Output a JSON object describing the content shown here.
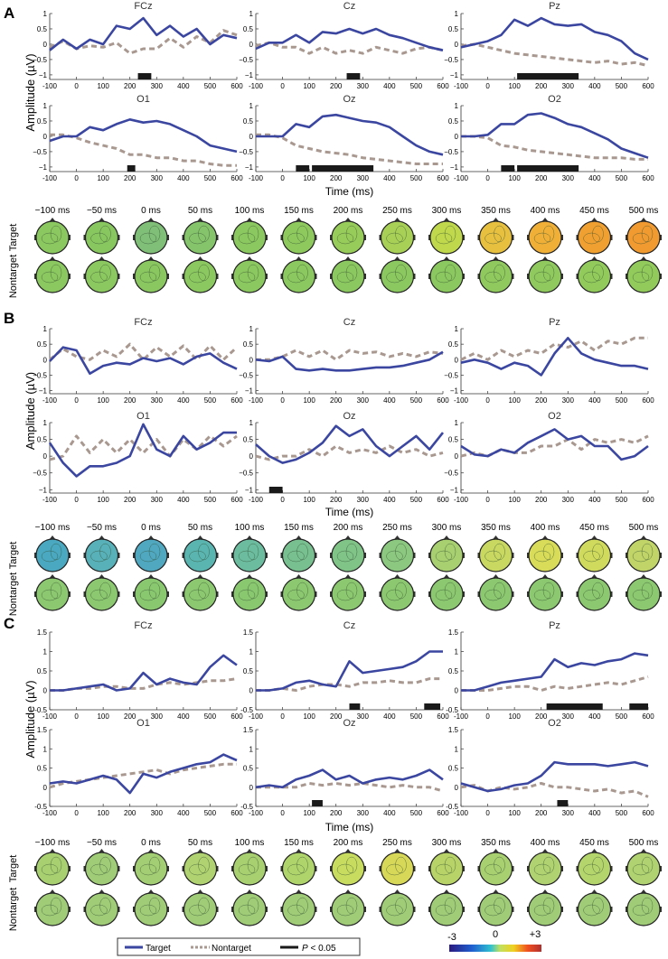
{
  "chart_data": {
    "type": "line",
    "xlabel": "Time (ms)",
    "ylabel": "Amplitude (µV)",
    "x": [
      -100,
      -50,
      0,
      50,
      100,
      150,
      200,
      250,
      300,
      350,
      400,
      450,
      500,
      550,
      600
    ],
    "xticks": [
      -100,
      0,
      100,
      200,
      300,
      400,
      500,
      600
    ],
    "legend": {
      "target": "Target",
      "nontarget": "Nontarget",
      "sig_p": "P",
      "sig_rest": " < 0.05"
    },
    "colors": {
      "target": "#3a46a0",
      "nontarget": "#a89890",
      "sig": "#1a1a1a"
    },
    "colorbar": {
      "min": "-3",
      "mid": "0",
      "max": "+3"
    },
    "topo_times": [
      "−100 ms",
      "−50 ms",
      "0 ms",
      "50 ms",
      "100 ms",
      "150 ms",
      "200 ms",
      "250 ms",
      "300 ms",
      "350 ms",
      "400 ms",
      "450 ms",
      "500 ms"
    ],
    "topo_row_labels": [
      "Target",
      "Nontarget"
    ],
    "panels": [
      {
        "label": "A",
        "ylim": [
          -1.15,
          1
        ],
        "yticks": [
          -1,
          -0.5,
          0,
          0.5,
          1
        ],
        "ytick_labels": [
          "−1",
          "−0.5",
          "0",
          "0.5",
          "1"
        ],
        "channels": [
          {
            "name": "FCz",
            "target": [
              -0.2,
              0.15,
              -0.15,
              0.15,
              0.0,
              0.6,
              0.5,
              0.85,
              0.3,
              0.6,
              0.25,
              0.5,
              0.0,
              0.3,
              0.2
            ],
            "nontarget": [
              -0.1,
              0.1,
              -0.15,
              -0.05,
              -0.1,
              0.05,
              -0.3,
              -0.15,
              -0.15,
              0.2,
              -0.1,
              0.25,
              0.05,
              0.45,
              0.3
            ],
            "sig": [
              [
                230,
                280
              ]
            ]
          },
          {
            "name": "Cz",
            "target": [
              -0.15,
              0.05,
              0.05,
              0.3,
              0.05,
              0.4,
              0.35,
              0.5,
              0.35,
              0.5,
              0.3,
              0.2,
              0.05,
              -0.1,
              -0.2
            ],
            "nontarget": [
              -0.05,
              0.05,
              -0.1,
              -0.1,
              -0.3,
              -0.1,
              -0.3,
              -0.2,
              -0.3,
              -0.1,
              -0.2,
              -0.3,
              -0.15,
              -0.1,
              -0.2
            ],
            "sig": [
              [
                240,
                290
              ]
            ]
          },
          {
            "name": "Pz",
            "target": [
              -0.1,
              0.0,
              0.1,
              0.3,
              0.8,
              0.6,
              0.85,
              0.65,
              0.6,
              0.65,
              0.4,
              0.3,
              0.1,
              -0.3,
              -0.5
            ],
            "nontarget": [
              -0.05,
              0.0,
              -0.1,
              -0.2,
              -0.3,
              -0.35,
              -0.4,
              -0.45,
              -0.5,
              -0.55,
              -0.6,
              -0.55,
              -0.65,
              -0.6,
              -0.7
            ],
            "sig": [
              [
                110,
                340
              ]
            ]
          },
          {
            "name": "O1",
            "target": [
              -0.15,
              0.0,
              0.0,
              0.3,
              0.2,
              0.4,
              0.55,
              0.45,
              0.5,
              0.4,
              0.2,
              0.0,
              -0.3,
              -0.4,
              -0.5
            ],
            "nontarget": [
              0.05,
              0.05,
              -0.05,
              -0.2,
              -0.3,
              -0.4,
              -0.6,
              -0.6,
              -0.7,
              -0.7,
              -0.8,
              -0.8,
              -0.9,
              -0.95,
              -0.95
            ],
            "sig": [
              [
                190,
                220
              ]
            ]
          },
          {
            "name": "Oz",
            "target": [
              0,
              0,
              0,
              0.4,
              0.3,
              0.65,
              0.7,
              0.6,
              0.5,
              0.45,
              0.3,
              0.0,
              -0.3,
              -0.5,
              -0.6
            ],
            "nontarget": [
              0.05,
              0.05,
              -0.05,
              -0.3,
              -0.4,
              -0.5,
              -0.55,
              -0.6,
              -0.7,
              -0.75,
              -0.8,
              -0.85,
              -0.9,
              -0.9,
              -0.9
            ],
            "sig": [
              [
                50,
                100
              ],
              [
                110,
                340
              ]
            ]
          },
          {
            "name": "O2",
            "target": [
              0,
              0,
              0.05,
              0.4,
              0.4,
              0.7,
              0.75,
              0.6,
              0.4,
              0.3,
              0.1,
              -0.1,
              -0.4,
              -0.55,
              -0.7
            ],
            "nontarget": [
              0,
              0,
              -0.05,
              -0.3,
              -0.35,
              -0.45,
              -0.5,
              -0.55,
              -0.6,
              -0.65,
              -0.7,
              -0.7,
              -0.7,
              -0.75,
              -0.75
            ],
            "sig": [
              [
                50,
                100
              ],
              [
                110,
                340
              ]
            ]
          }
        ],
        "topo_colors": [
          [
            "#8cc860",
            "#88c660",
            "#80bf78",
            "#86c46c",
            "#8cc860",
            "#8ec95e",
            "#98cc5a",
            "#a8d056",
            "#c0d84c",
            "#e8c040",
            "#f0b038",
            "#f0a030",
            "#f09a30"
          ],
          [
            "#8cc860",
            "#8cc860",
            "#8ac760",
            "#8cc860",
            "#8cc860",
            "#8cc860",
            "#8cc860",
            "#8cc860",
            "#8cc860",
            "#90ca5e",
            "#90ca5e",
            "#92cb5c",
            "#92cb5c"
          ]
        ]
      },
      {
        "label": "B",
        "ylim": [
          -1.1,
          1
        ],
        "yticks": [
          -1,
          -0.5,
          0,
          0.5,
          1
        ],
        "ytick_labels": [
          "−1",
          "−0.5",
          "0",
          "0.5",
          "1"
        ],
        "channels": [
          {
            "name": "FCz",
            "target": [
              -0.05,
              0.4,
              0.3,
              -0.45,
              -0.2,
              -0.1,
              -0.15,
              0.05,
              -0.05,
              0.05,
              -0.15,
              0.1,
              0.2,
              -0.1,
              -0.3
            ],
            "nontarget": [
              0.0,
              0.35,
              0.1,
              0.0,
              0.3,
              0.1,
              0.5,
              0.0,
              0.4,
              0.1,
              0.45,
              0.0,
              0.45,
              0.0,
              0.4
            ],
            "sig": []
          },
          {
            "name": "Cz",
            "target": [
              0,
              -0.05,
              0.1,
              -0.3,
              -0.35,
              -0.3,
              -0.35,
              -0.35,
              -0.3,
              -0.25,
              -0.25,
              -0.2,
              -0.1,
              0.0,
              0.25
            ],
            "nontarget": [
              0,
              0,
              0.1,
              0.3,
              0.1,
              0.3,
              0,
              0.3,
              0.2,
              0.25,
              0.1,
              0.2,
              0.1,
              0.25,
              0.2
            ],
            "sig": []
          },
          {
            "name": "Pz",
            "target": [
              -0.1,
              0.0,
              -0.1,
              -0.3,
              -0.1,
              -0.2,
              -0.5,
              0.2,
              0.7,
              0.2,
              0.0,
              -0.1,
              -0.2,
              -0.2,
              -0.3
            ],
            "nontarget": [
              0,
              0.2,
              0,
              0.3,
              0.1,
              0.3,
              0.2,
              0.5,
              0.4,
              0.6,
              0.3,
              0.6,
              0.5,
              0.7,
              0.7
            ],
            "sig": []
          },
          {
            "name": "O1",
            "target": [
              0.4,
              -0.2,
              -0.6,
              -0.3,
              -0.3,
              -0.2,
              0.0,
              0.95,
              0.2,
              0.0,
              0.6,
              0.2,
              0.4,
              0.7,
              0.7
            ],
            "nontarget": [
              -0.1,
              0.0,
              0.6,
              0.1,
              0.5,
              0.1,
              0.5,
              0.1,
              0.5,
              0.0,
              0.5,
              0.2,
              0.6,
              0.3,
              0.6
            ],
            "sig": []
          },
          {
            "name": "Oz",
            "target": [
              0.35,
              0.0,
              -0.2,
              -0.1,
              0.1,
              0.4,
              0.9,
              0.6,
              0.8,
              0.3,
              0.0,
              0.3,
              0.6,
              0.2,
              0.7
            ],
            "nontarget": [
              0,
              -0.1,
              0.0,
              0.0,
              0.2,
              0.0,
              0.3,
              0.1,
              0.2,
              0.1,
              0.3,
              0.1,
              0.2,
              0.0,
              0.1
            ],
            "sig": [
              [
                -50,
                0
              ]
            ]
          },
          {
            "name": "O2",
            "target": [
              0.3,
              0.05,
              0.0,
              0.2,
              0.1,
              0.4,
              0.6,
              0.8,
              0.5,
              0.6,
              0.3,
              0.3,
              -0.1,
              0.0,
              0.3
            ],
            "nontarget": [
              0,
              0.1,
              0.0,
              0.2,
              0.1,
              0.1,
              0.3,
              0.3,
              0.5,
              0.2,
              0.5,
              0.4,
              0.5,
              0.4,
              0.6
            ],
            "sig": []
          }
        ],
        "topo_colors": [
          [
            "#4aa8c0",
            "#58b0b8",
            "#50a8c0",
            "#5ab4b0",
            "#6cbca0",
            "#78c090",
            "#80c488",
            "#8cc880",
            "#a8d070",
            "#c8d860",
            "#d8dc58",
            "#d0da5c",
            "#c0d468"
          ],
          [
            "#8cc870",
            "#8cc870",
            "#8ac870",
            "#8cc870",
            "#8ac870",
            "#8cc870",
            "#8cc870",
            "#8cc870",
            "#8cc870",
            "#8cc870",
            "#8cc870",
            "#8cc870",
            "#8cc870"
          ]
        ]
      },
      {
        "label": "C",
        "ylim": [
          -0.5,
          1.5
        ],
        "yticks": [
          -0.5,
          0,
          0.5,
          1,
          1.5
        ],
        "ytick_labels": [
          "-0.5",
          "0",
          "0.5",
          "1",
          "1.5"
        ],
        "channels": [
          {
            "name": "FCz",
            "target": [
              0,
              0,
              0.05,
              0.1,
              0.15,
              0.0,
              0.05,
              0.45,
              0.15,
              0.3,
              0.2,
              0.15,
              0.6,
              0.9,
              0.65
            ],
            "nontarget": [
              0,
              0,
              0.05,
              0.05,
              0.1,
              0.1,
              0.05,
              0.05,
              0.15,
              0.2,
              0.15,
              0.2,
              0.25,
              0.25,
              0.3
            ],
            "sig": []
          },
          {
            "name": "Cz",
            "target": [
              0,
              0,
              0.05,
              0.2,
              0.25,
              0.15,
              0.1,
              0.75,
              0.45,
              0.5,
              0.55,
              0.6,
              0.75,
              1.0,
              1.0
            ],
            "nontarget": [
              0,
              0,
              0.05,
              0.0,
              0.1,
              0.15,
              0.15,
              0.1,
              0.2,
              0.2,
              0.25,
              0.2,
              0.2,
              0.3,
              0.3
            ],
            "sig": [
              [
                250,
                290
              ],
              [
                530,
                590
              ]
            ]
          },
          {
            "name": "Pz",
            "target": [
              0,
              0,
              0.1,
              0.2,
              0.25,
              0.3,
              0.35,
              0.8,
              0.6,
              0.7,
              0.65,
              0.75,
              0.8,
              0.95,
              0.9
            ],
            "nontarget": [
              0,
              0,
              0.0,
              0.05,
              0.1,
              0.1,
              0.0,
              0.1,
              0.05,
              0.1,
              0.15,
              0.2,
              0.15,
              0.25,
              0.35
            ],
            "sig": [
              [
                220,
                430
              ],
              [
                530,
                600
              ]
            ]
          },
          {
            "name": "O1",
            "target": [
              0.1,
              0.15,
              0.1,
              0.2,
              0.3,
              0.2,
              -0.15,
              0.35,
              0.25,
              0.4,
              0.5,
              0.6,
              0.65,
              0.85,
              0.7
            ],
            "nontarget": [
              0,
              0.1,
              0.15,
              0.2,
              0.25,
              0.3,
              0.35,
              0.4,
              0.45,
              0.35,
              0.45,
              0.5,
              0.55,
              0.6,
              0.6
            ],
            "sig": []
          },
          {
            "name": "Oz",
            "target": [
              0,
              0.05,
              0.0,
              0.2,
              0.3,
              0.45,
              0.2,
              0.3,
              0.1,
              0.2,
              0.25,
              0.2,
              0.3,
              0.45,
              0.2
            ],
            "nontarget": [
              0,
              0,
              0.0,
              0.0,
              0.1,
              0.05,
              0.1,
              0.05,
              0.1,
              0.05,
              0.0,
              0.05,
              0.0,
              0.0,
              -0.1
            ],
            "sig": [
              [
                110,
                150
              ]
            ]
          },
          {
            "name": "O2",
            "target": [
              0.1,
              0.0,
              -0.1,
              -0.05,
              0.05,
              0.1,
              0.3,
              0.65,
              0.6,
              0.6,
              0.6,
              0.55,
              0.6,
              0.65,
              0.55
            ],
            "nontarget": [
              0,
              0.05,
              -0.1,
              0.0,
              -0.05,
              0.0,
              0.1,
              0.0,
              0.0,
              -0.05,
              -0.1,
              -0.05,
              -0.15,
              -0.1,
              -0.25
            ],
            "sig": [
              [
                260,
                300
              ]
            ]
          }
        ],
        "topo_colors": [
          [
            "#a8d070",
            "#a0cc78",
            "#a4ce74",
            "#b0d270",
            "#a8d070",
            "#b0d46c",
            "#c8dc60",
            "#d8d858",
            "#b8d468",
            "#a8d070",
            "#b0d270",
            "#b4d46c",
            "#b0d270"
          ],
          [
            "#a0cc78",
            "#a0cc78",
            "#a0cc78",
            "#a0cc78",
            "#a0cc78",
            "#a0cc78",
            "#a0cc78",
            "#a0cc78",
            "#a0cc78",
            "#a0cc78",
            "#a0cc78",
            "#a0cc78",
            "#a0cc78"
          ]
        ]
      }
    ]
  }
}
